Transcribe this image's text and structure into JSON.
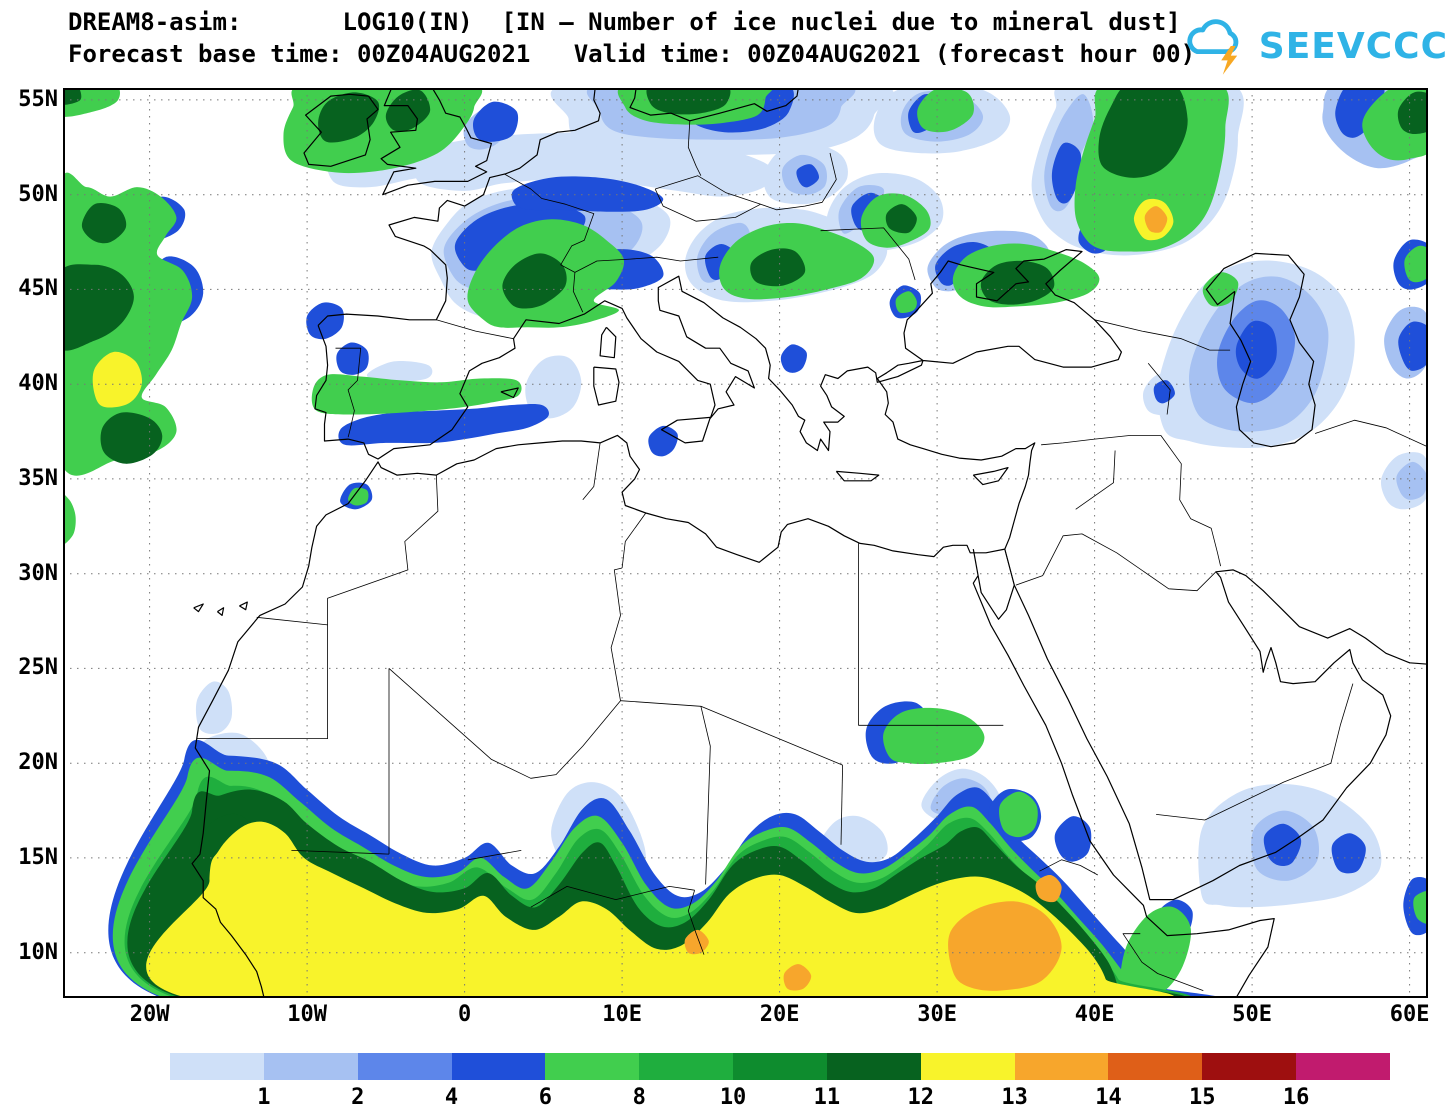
{
  "header": {
    "line1": "DREAM8-asim:       LOG10(IN)  [IN – Number of ice nuclei due to mineral dust]",
    "line2": "Forecast base time: 00Z04AUG2021   Valid time: 00Z04AUG2021 (forecast hour 00)"
  },
  "logo": {
    "text": "SEEVCCC",
    "color": "#2fb3e6",
    "bolt_color": "#f7a823"
  },
  "axes": {
    "lat_ticks": [
      "55N",
      "50N",
      "45N",
      "40N",
      "35N",
      "30N",
      "25N",
      "20N",
      "15N",
      "10N"
    ],
    "lon_ticks": [
      "20W",
      "10W",
      "0",
      "10E",
      "20E",
      "30E",
      "40E",
      "50E",
      "60E"
    ]
  },
  "colorbar": {
    "labels": [
      "1",
      "2",
      "4",
      "6",
      "8",
      "10",
      "11",
      "12",
      "13",
      "14",
      "15",
      "16"
    ],
    "colors": [
      "#cfe0f8",
      "#a6c1f2",
      "#5d86ea",
      "#1f4fd9",
      "#41ce4e",
      "#1fae3e",
      "#0e8c2e",
      "#07621f",
      "#f8f32b",
      "#f7a62c",
      "#df5f18",
      "#9e0f0f",
      "#c11b6e"
    ]
  },
  "chart_data": {
    "type": "heatmap",
    "model": "DREAM8-asim",
    "variable": "LOG10(IN)",
    "variable_description": "IN – Number of ice nuclei due to mineral dust",
    "forecast_base_time": "00Z04AUG2021",
    "valid_time": "00Z04AUG2021",
    "forecast_hour": "00",
    "x_tick_labels": [
      "20W",
      "10W",
      "0",
      "10E",
      "20E",
      "30E",
      "40E",
      "50E",
      "60E"
    ],
    "y_tick_labels": [
      "10N",
      "15N",
      "20N",
      "25N",
      "30N",
      "35N",
      "40N",
      "45N",
      "50N",
      "55N"
    ],
    "colorbar_levels": [
      "1",
      "2",
      "4",
      "6",
      "8",
      "10",
      "11",
      "12",
      "13",
      "14",
      "15",
      "16"
    ],
    "colorbar_colors": [
      "#cfe0f8",
      "#a6c1f2",
      "#5d86ea",
      "#1f4fd9",
      "#41ce4e",
      "#1fae3e",
      "#0e8c2e",
      "#07621f",
      "#f8f32b",
      "#f7a62c",
      "#df5f18",
      "#9e0f0f",
      "#c11b6e"
    ]
  }
}
